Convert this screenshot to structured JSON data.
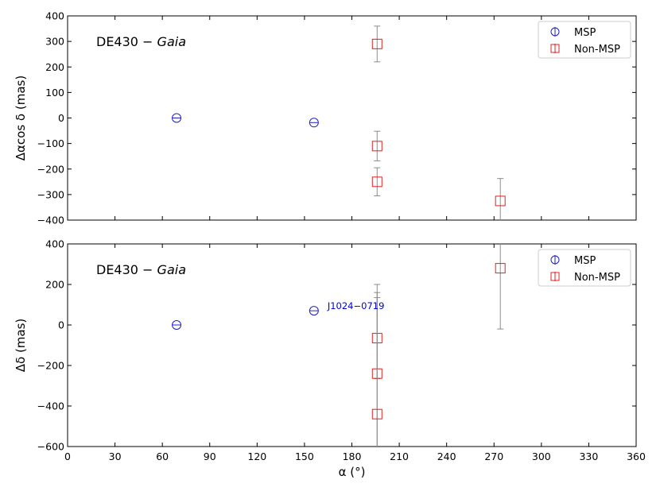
{
  "chart_data": [
    {
      "type": "scatter",
      "panel": "top",
      "title_prefix": "DE430 − ",
      "title_italic": "Gaia",
      "xlabel": "",
      "ylabel": "Δαcos δ (mas)",
      "xlim": [
        0,
        360
      ],
      "ylim": [
        -400,
        400
      ],
      "yticks": [
        -400,
        -300,
        -200,
        -100,
        0,
        100,
        200,
        300,
        400
      ],
      "ytick_labels": [
        "−400",
        "−300",
        "−200",
        "−100",
        "0",
        "100",
        "200",
        "300",
        "400"
      ],
      "legend_position": "top-right",
      "series": [
        {
          "name": "MSP",
          "marker": "circle",
          "color": "#2020c8",
          "points": [
            {
              "x": 69,
              "y": 0,
              "err": 0
            },
            {
              "x": 156,
              "y": -18,
              "err": 0
            }
          ]
        },
        {
          "name": "Non-MSP",
          "marker": "square",
          "color": "#e02020",
          "points": [
            {
              "x": 196,
              "y": 290,
              "err": 70
            },
            {
              "x": 196,
              "y": -110,
              "err": 58
            },
            {
              "x": 196,
              "y": -250,
              "err": 55
            },
            {
              "x": 274,
              "y": -325,
              "err": 88
            }
          ]
        }
      ],
      "annotations": []
    },
    {
      "type": "scatter",
      "panel": "bottom",
      "title_prefix": "DE430 − ",
      "title_italic": "Gaia",
      "xlabel": "α (°)",
      "ylabel": "Δδ (mas)",
      "xlim": [
        0,
        360
      ],
      "ylim": [
        -600,
        400
      ],
      "xticks": [
        0,
        30,
        60,
        90,
        120,
        150,
        180,
        210,
        240,
        270,
        300,
        330,
        360
      ],
      "xtick_labels": [
        "0",
        "30",
        "60",
        "90",
        "120",
        "150",
        "180",
        "210",
        "240",
        "270",
        "300",
        "330",
        "360"
      ],
      "yticks": [
        -600,
        -400,
        -200,
        0,
        200,
        400
      ],
      "ytick_labels": [
        "−600",
        "−400",
        "−200",
        "0",
        "200",
        "400"
      ],
      "legend_position": "top-right",
      "series": [
        {
          "name": "MSP",
          "marker": "circle",
          "color": "#2020c8",
          "points": [
            {
              "x": 69,
              "y": 0,
              "err": 0
            },
            {
              "x": 156,
              "y": 70,
              "err": 0
            }
          ]
        },
        {
          "name": "Non-MSP",
          "marker": "square",
          "color": "#e02020",
          "points": [
            {
              "x": 196,
              "y": -65,
              "err": 200
            },
            {
              "x": 196,
              "y": -240,
              "err": 440
            },
            {
              "x": 196,
              "y": -440,
              "err": 600
            },
            {
              "x": 274,
              "y": 280,
              "err": 300
            }
          ]
        }
      ],
      "annotations": [
        {
          "text": "J1024−0719",
          "x": 156,
          "y": 70,
          "color": "#0000e0"
        }
      ]
    }
  ],
  "colors": {
    "msp": "#2020c8",
    "non_msp": "#e02020",
    "errorbar": "#8c8c8c",
    "annotation": "#0000e0"
  }
}
